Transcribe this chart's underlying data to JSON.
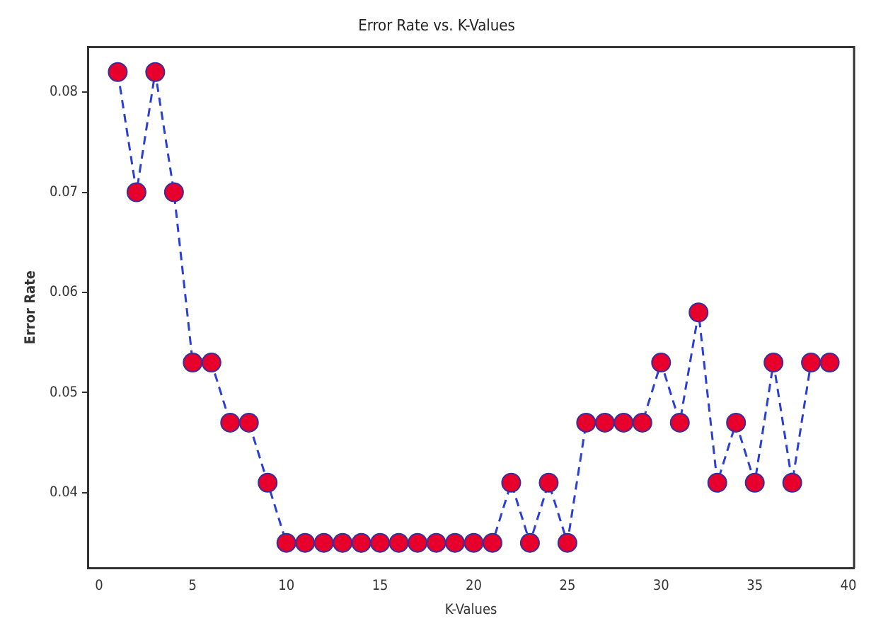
{
  "chart_data": {
    "type": "line",
    "title": "Error Rate vs. K-Values",
    "xlabel": "K-Values",
    "ylabel": "Error Rate",
    "x": [
      1,
      2,
      3,
      4,
      5,
      6,
      7,
      8,
      9,
      10,
      11,
      12,
      13,
      14,
      15,
      16,
      17,
      18,
      19,
      20,
      21,
      22,
      23,
      24,
      25,
      26,
      27,
      28,
      29,
      30,
      31,
      32,
      33,
      34,
      35,
      36,
      37,
      38,
      39
    ],
    "series": [
      {
        "color": "#2b3fd6",
        "values": [
          0.082,
          0.07,
          0.082,
          0.07,
          0.053,
          0.053,
          0.047,
          0.047,
          0.041,
          0.035,
          0.035,
          0.035,
          0.035,
          0.035,
          0.035,
          0.035,
          0.035,
          0.035,
          0.035,
          0.035,
          0.035,
          0.041,
          0.035,
          0.041,
          0.035,
          0.047,
          0.047,
          0.047,
          0.047,
          0.053,
          0.047,
          0.058,
          0.041,
          0.047,
          0.041,
          0.053,
          0.041,
          0.053,
          0.053
        ]
      }
    ],
    "xlim": [
      -0.6,
      40.3
    ],
    "xticks": [
      0,
      5,
      10,
      15,
      20,
      25,
      30,
      35,
      40
    ],
    "ylim": [
      0.0325,
      0.0845
    ],
    "yticks": [
      0.04,
      0.05,
      0.06,
      0.07,
      0.08
    ],
    "grid": false,
    "legend": false,
    "marker": "circle",
    "line_style": "dashed"
  }
}
